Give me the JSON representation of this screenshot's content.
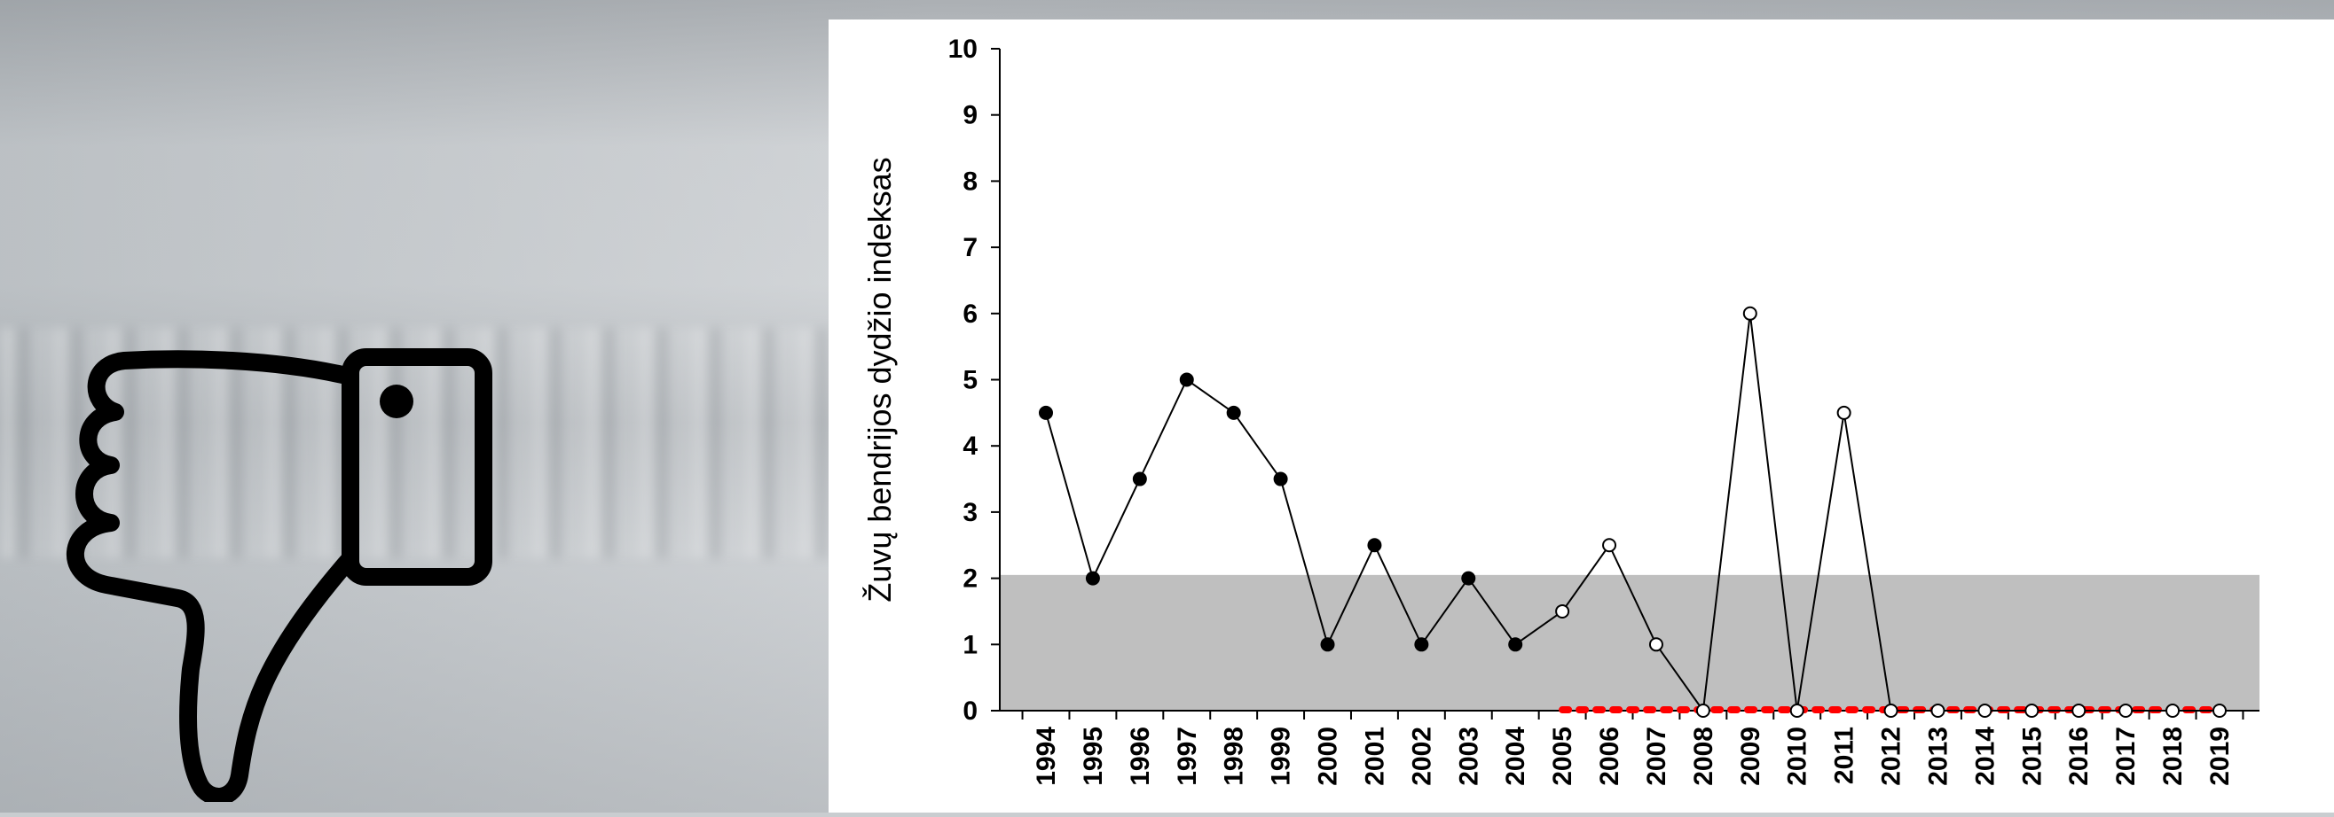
{
  "icon": {
    "name": "thumbs-down-icon",
    "color": "#000000"
  },
  "chart_data": {
    "type": "line",
    "ylabel": "Žuvų bendrijos dydžio indeksas",
    "xlabel": "",
    "ylim": [
      0,
      10
    ],
    "yticks": [
      "0",
      "1",
      "2",
      "3",
      "4",
      "5",
      "6",
      "7",
      "8",
      "9",
      "10"
    ],
    "categories": [
      "1994",
      "1995",
      "1996",
      "1997",
      "1998",
      "1999",
      "2000",
      "2001",
      "2002",
      "2003",
      "2004",
      "2005",
      "2006",
      "2007",
      "2008",
      "2009",
      "2010",
      "2011",
      "2012",
      "2013",
      "2014",
      "2015",
      "2016",
      "2017",
      "2018",
      "2019"
    ],
    "series": [
      {
        "values": [
          4.5,
          2,
          3.5,
          5,
          4.5,
          3.5,
          1,
          2.5,
          1,
          2,
          1,
          1.5,
          2.5,
          1,
          0,
          6,
          0,
          4.5,
          0,
          0,
          0,
          0,
          0,
          0,
          0,
          0
        ],
        "markers_filled_until": "2004",
        "color": "#000000"
      },
      {
        "values": [
          null,
          null,
          null,
          null,
          null,
          null,
          null,
          null,
          null,
          null,
          null,
          0,
          0,
          0,
          0,
          0,
          0,
          0,
          0,
          0,
          0,
          0,
          0,
          0,
          0,
          0
        ],
        "style": "dotted",
        "color": "#ff0000"
      }
    ],
    "shaded_band": {
      "from": 0,
      "to": 2.05,
      "color": "#bfbfbf"
    },
    "grid": false,
    "legend": "none"
  }
}
